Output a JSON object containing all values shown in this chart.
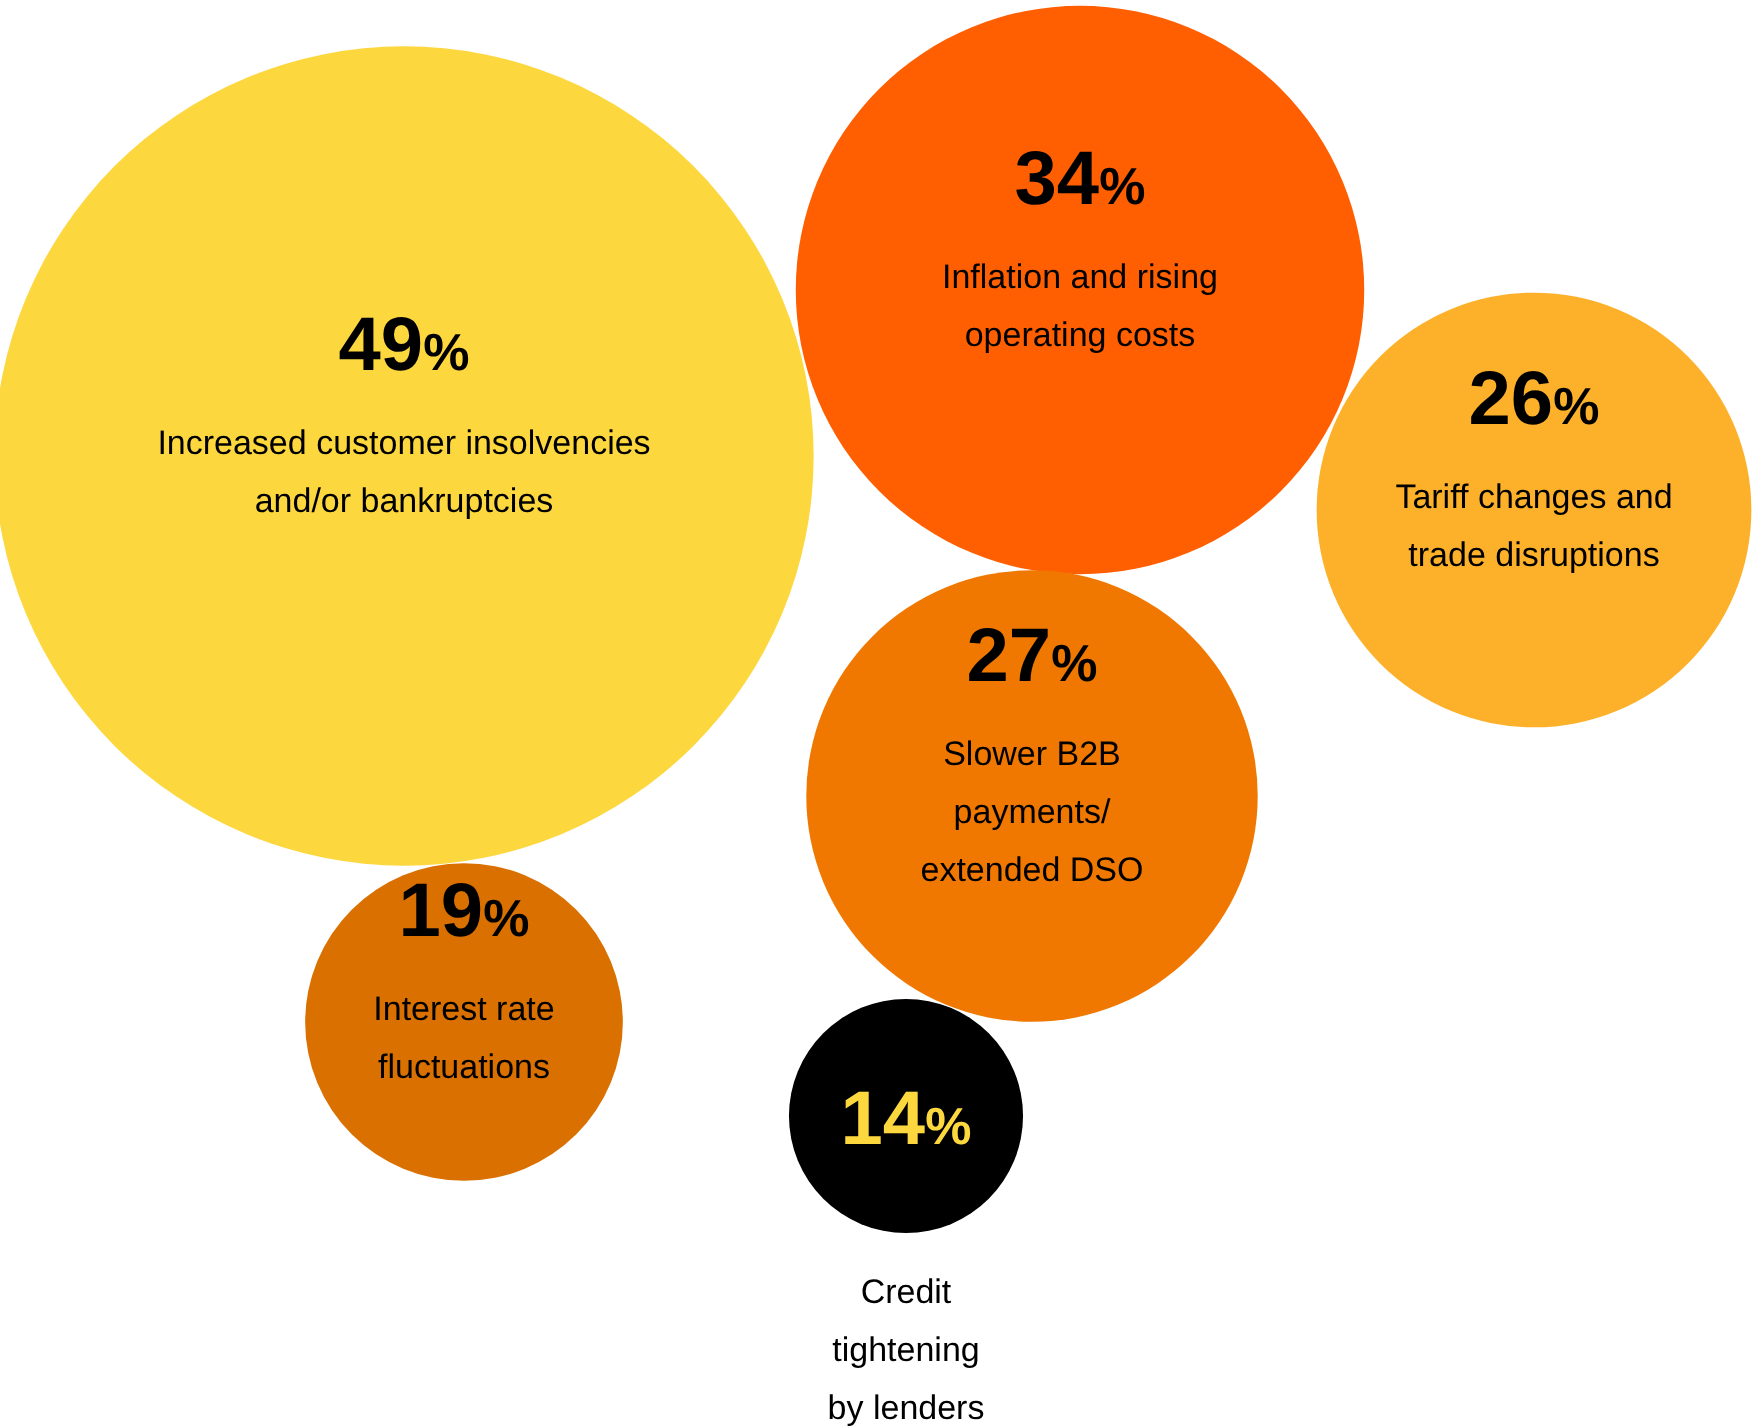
{
  "chart_data": {
    "type": "other",
    "categories": [
      "Increased customer insolvencies\nand/or bankruptcies",
      "Inflation and rising\noperating costs",
      "Tariff changes and\ntrade disruptions",
      "Slower B2B\npayments/\nextended DSO",
      "Interest rate\nfluctuations",
      "Credit\ntightening\nby lenders"
    ],
    "values": [
      49,
      34,
      26,
      27,
      19,
      14
    ],
    "value_labels": [
      "49%",
      "34%",
      "26%",
      "27%",
      "19%",
      "14%"
    ],
    "colors": [
      "#fdd73e",
      "#ff5f00",
      "#fdb12a",
      "#f07800",
      "#d97000",
      "#000000"
    ]
  }
}
